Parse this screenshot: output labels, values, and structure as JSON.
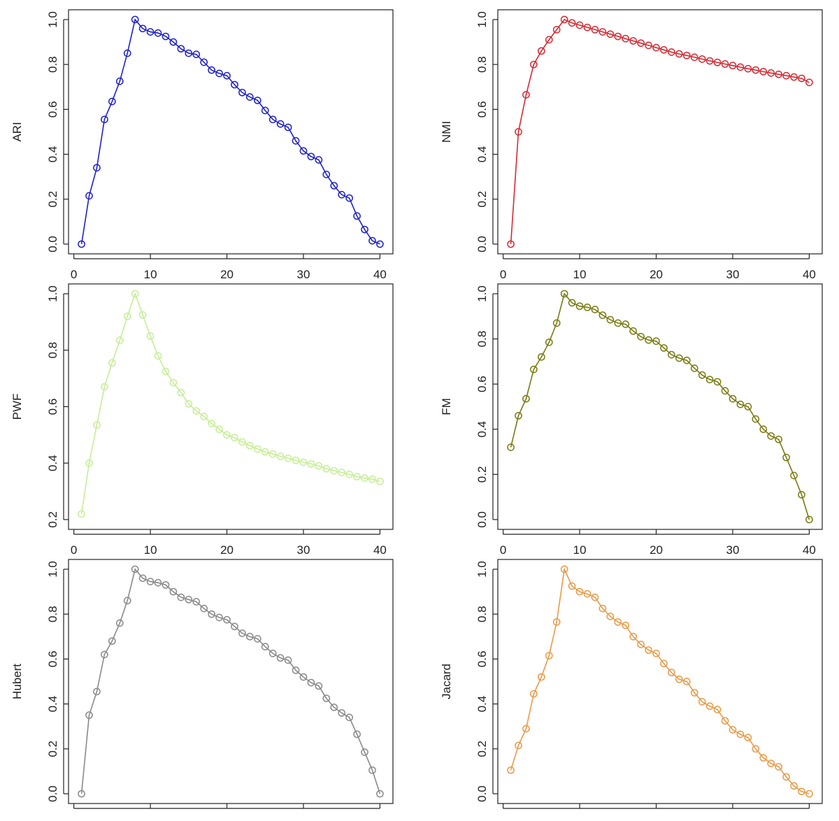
{
  "chart_data": [
    {
      "type": "line",
      "ylabel": "ARI",
      "color": "#1f22c8",
      "xlim": [
        1,
        40
      ],
      "ylim": [
        0,
        1
      ],
      "xticks": [
        "0",
        "10",
        "20",
        "30",
        "40"
      ],
      "yticks": [
        "0.0",
        "0.2",
        "0.4",
        "0.6",
        "0.8",
        "1.0"
      ],
      "x": [
        1,
        2,
        3,
        4,
        5,
        6,
        7,
        8,
        9,
        10,
        11,
        12,
        13,
        14,
        15,
        16,
        17,
        18,
        19,
        20,
        21,
        22,
        23,
        24,
        25,
        26,
        27,
        28,
        29,
        30,
        31,
        32,
        33,
        34,
        35,
        36,
        37,
        38,
        39,
        40
      ],
      "y": [
        0.0,
        0.215,
        0.34,
        0.555,
        0.635,
        0.725,
        0.85,
        1.0,
        0.96,
        0.945,
        0.94,
        0.925,
        0.9,
        0.87,
        0.85,
        0.845,
        0.81,
        0.775,
        0.76,
        0.75,
        0.71,
        0.675,
        0.655,
        0.64,
        0.595,
        0.555,
        0.535,
        0.52,
        0.46,
        0.415,
        0.39,
        0.375,
        0.31,
        0.26,
        0.22,
        0.205,
        0.125,
        0.065,
        0.015,
        0.0
      ]
    },
    {
      "type": "line",
      "ylabel": "NMI",
      "color": "#d42a34",
      "xlim": [
        1,
        40
      ],
      "ylim": [
        0,
        1
      ],
      "xticks": [
        "0",
        "10",
        "20",
        "30",
        "40"
      ],
      "yticks": [
        "0.0",
        "0.2",
        "0.4",
        "0.6",
        "0.8",
        "1.0"
      ],
      "x": [
        1,
        2,
        3,
        4,
        5,
        6,
        7,
        8,
        9,
        10,
        11,
        12,
        13,
        14,
        15,
        16,
        17,
        18,
        19,
        20,
        21,
        22,
        23,
        24,
        25,
        26,
        27,
        28,
        29,
        30,
        31,
        32,
        33,
        34,
        35,
        36,
        37,
        38,
        39,
        40
      ],
      "y": [
        0.0,
        0.5,
        0.665,
        0.8,
        0.86,
        0.91,
        0.955,
        1.0,
        0.985,
        0.975,
        0.965,
        0.955,
        0.945,
        0.935,
        0.925,
        0.915,
        0.905,
        0.895,
        0.885,
        0.875,
        0.865,
        0.855,
        0.847,
        0.84,
        0.832,
        0.824,
        0.816,
        0.809,
        0.802,
        0.795,
        0.788,
        0.781,
        0.775,
        0.768,
        0.762,
        0.756,
        0.75,
        0.744,
        0.738,
        0.72
      ]
    },
    {
      "type": "line",
      "ylabel": "PWF",
      "color": "#c6ee96",
      "xlim": [
        1,
        40
      ],
      "ylim": [
        0.2,
        1
      ],
      "xticks": [
        "0",
        "10",
        "20",
        "30",
        "40"
      ],
      "yticks": [
        "0.2",
        "0.4",
        "0.6",
        "0.8",
        "1.0"
      ],
      "x": [
        1,
        2,
        3,
        4,
        5,
        6,
        7,
        8,
        9,
        10,
        11,
        12,
        13,
        14,
        15,
        16,
        17,
        18,
        19,
        20,
        21,
        22,
        23,
        24,
        25,
        26,
        27,
        28,
        29,
        30,
        31,
        32,
        33,
        34,
        35,
        36,
        37,
        38,
        39,
        40
      ],
      "y": [
        0.22,
        0.4,
        0.535,
        0.67,
        0.755,
        0.835,
        0.92,
        1.0,
        0.925,
        0.85,
        0.78,
        0.725,
        0.685,
        0.65,
        0.61,
        0.585,
        0.565,
        0.54,
        0.52,
        0.5,
        0.49,
        0.475,
        0.462,
        0.45,
        0.44,
        0.432,
        0.424,
        0.417,
        0.41,
        0.403,
        0.397,
        0.39,
        0.38,
        0.373,
        0.367,
        0.36,
        0.352,
        0.347,
        0.343,
        0.335
      ]
    },
    {
      "type": "line",
      "ylabel": "FM",
      "color": "#7a7a12",
      "xlim": [
        1,
        40
      ],
      "ylim": [
        0,
        1
      ],
      "xticks": [
        "0",
        "10",
        "20",
        "30",
        "40"
      ],
      "yticks": [
        "0.0",
        "0.2",
        "0.4",
        "0.6",
        "0.8",
        "1.0"
      ],
      "x": [
        1,
        2,
        3,
        4,
        5,
        6,
        7,
        8,
        9,
        10,
        11,
        12,
        13,
        14,
        15,
        16,
        17,
        18,
        19,
        20,
        21,
        22,
        23,
        24,
        25,
        26,
        27,
        28,
        29,
        30,
        31,
        32,
        33,
        34,
        35,
        36,
        37,
        38,
        39,
        40
      ],
      "y": [
        0.32,
        0.46,
        0.535,
        0.665,
        0.72,
        0.785,
        0.87,
        1.0,
        0.96,
        0.945,
        0.94,
        0.93,
        0.905,
        0.885,
        0.87,
        0.865,
        0.835,
        0.81,
        0.795,
        0.79,
        0.76,
        0.73,
        0.715,
        0.705,
        0.67,
        0.64,
        0.62,
        0.61,
        0.57,
        0.535,
        0.51,
        0.5,
        0.445,
        0.4,
        0.37,
        0.355,
        0.275,
        0.195,
        0.11,
        0.0
      ]
    },
    {
      "type": "line",
      "ylabel": "Hubert",
      "color": "#8a8a8a",
      "xlim": [
        1,
        40
      ],
      "ylim": [
        0,
        1
      ],
      "xticks": [],
      "yticks": [
        "0.0",
        "0.2",
        "0.4",
        "0.6",
        "0.8",
        "1.0"
      ],
      "x": [
        1,
        2,
        3,
        4,
        5,
        6,
        7,
        8,
        9,
        10,
        11,
        12,
        13,
        14,
        15,
        16,
        17,
        18,
        19,
        20,
        21,
        22,
        23,
        24,
        25,
        26,
        27,
        28,
        29,
        30,
        31,
        32,
        33,
        34,
        35,
        36,
        37,
        38,
        39,
        40
      ],
      "y": [
        0.0,
        0.35,
        0.455,
        0.62,
        0.68,
        0.76,
        0.86,
        1.0,
        0.96,
        0.945,
        0.94,
        0.93,
        0.9,
        0.875,
        0.865,
        0.855,
        0.825,
        0.8,
        0.785,
        0.775,
        0.745,
        0.715,
        0.7,
        0.69,
        0.655,
        0.625,
        0.605,
        0.595,
        0.55,
        0.52,
        0.495,
        0.48,
        0.425,
        0.385,
        0.36,
        0.34,
        0.265,
        0.185,
        0.105,
        0.0
      ]
    },
    {
      "type": "line",
      "ylabel": "Jacard",
      "color": "#e89a48",
      "xlim": [
        1,
        40
      ],
      "ylim": [
        0,
        1
      ],
      "xticks": [],
      "yticks": [
        "0.0",
        "0.2",
        "0.4",
        "0.6",
        "0.8",
        "1.0"
      ],
      "x": [
        1,
        2,
        3,
        4,
        5,
        6,
        7,
        8,
        9,
        10,
        11,
        12,
        13,
        14,
        15,
        16,
        17,
        18,
        19,
        20,
        21,
        22,
        23,
        24,
        25,
        26,
        27,
        28,
        29,
        30,
        31,
        32,
        33,
        34,
        35,
        36,
        37,
        38,
        39,
        40
      ],
      "y": [
        0.105,
        0.215,
        0.29,
        0.445,
        0.52,
        0.615,
        0.765,
        1.0,
        0.925,
        0.9,
        0.89,
        0.875,
        0.825,
        0.79,
        0.765,
        0.75,
        0.7,
        0.665,
        0.64,
        0.625,
        0.58,
        0.54,
        0.51,
        0.5,
        0.45,
        0.41,
        0.39,
        0.375,
        0.325,
        0.285,
        0.265,
        0.25,
        0.2,
        0.16,
        0.135,
        0.12,
        0.075,
        0.035,
        0.01,
        0.0
      ]
    }
  ]
}
